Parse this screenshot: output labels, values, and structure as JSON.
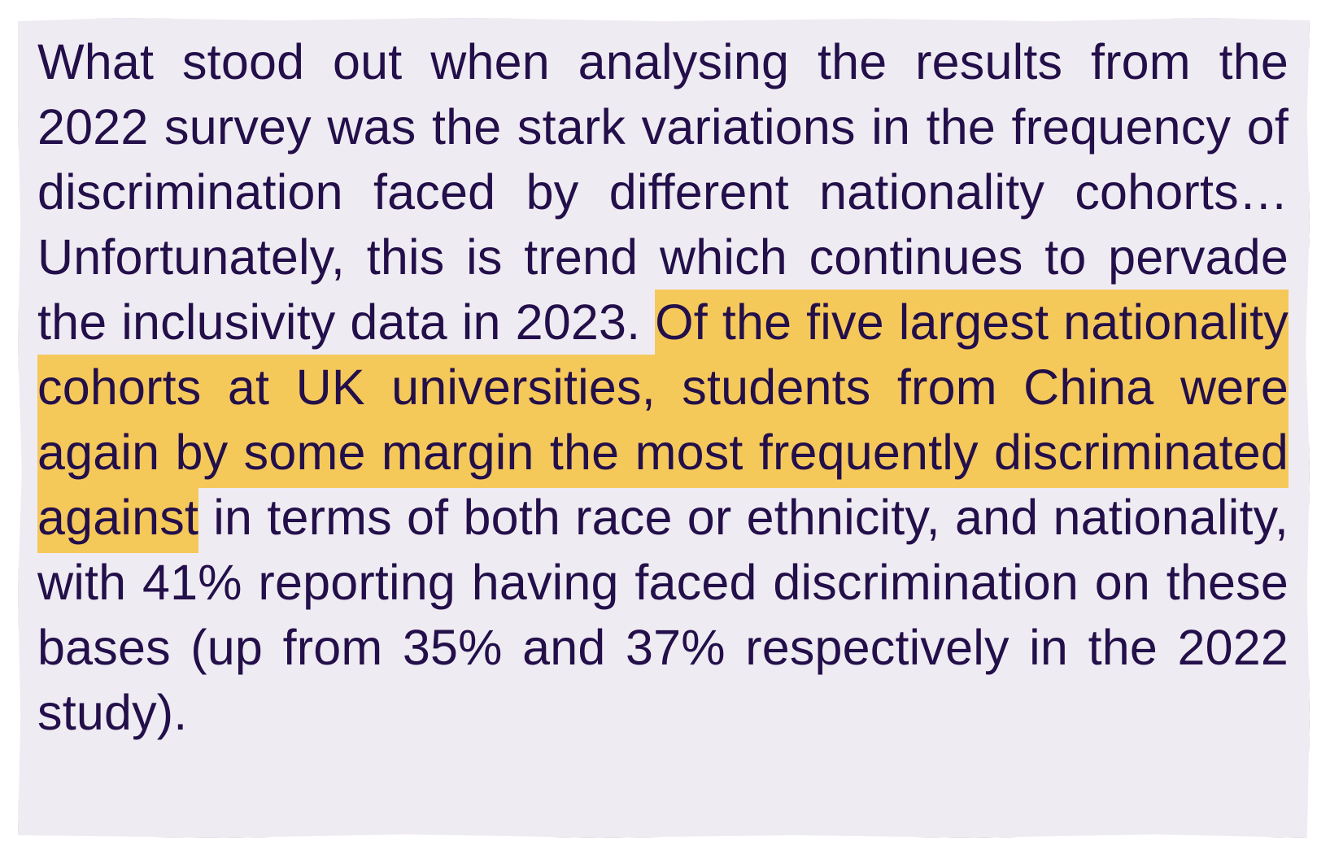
{
  "paragraph": {
    "before": "What stood out when analysing the results from the 2022 survey was the stark variations in the frequency of discrimination faced by different nationality cohorts… Unfortunately, this is trend which continues to pervade the inclusivity data in 2023.",
    "highlight": "Of the five largest nationality cohorts at UK universities, students from China were again by some margin the most frequently discriminated against",
    "after": "in terms of both race or ethnicity, and nationality, with 41% reporting having faced discrimination on these bases (up from 35% and 37% respectively in the 2022 study)."
  }
}
